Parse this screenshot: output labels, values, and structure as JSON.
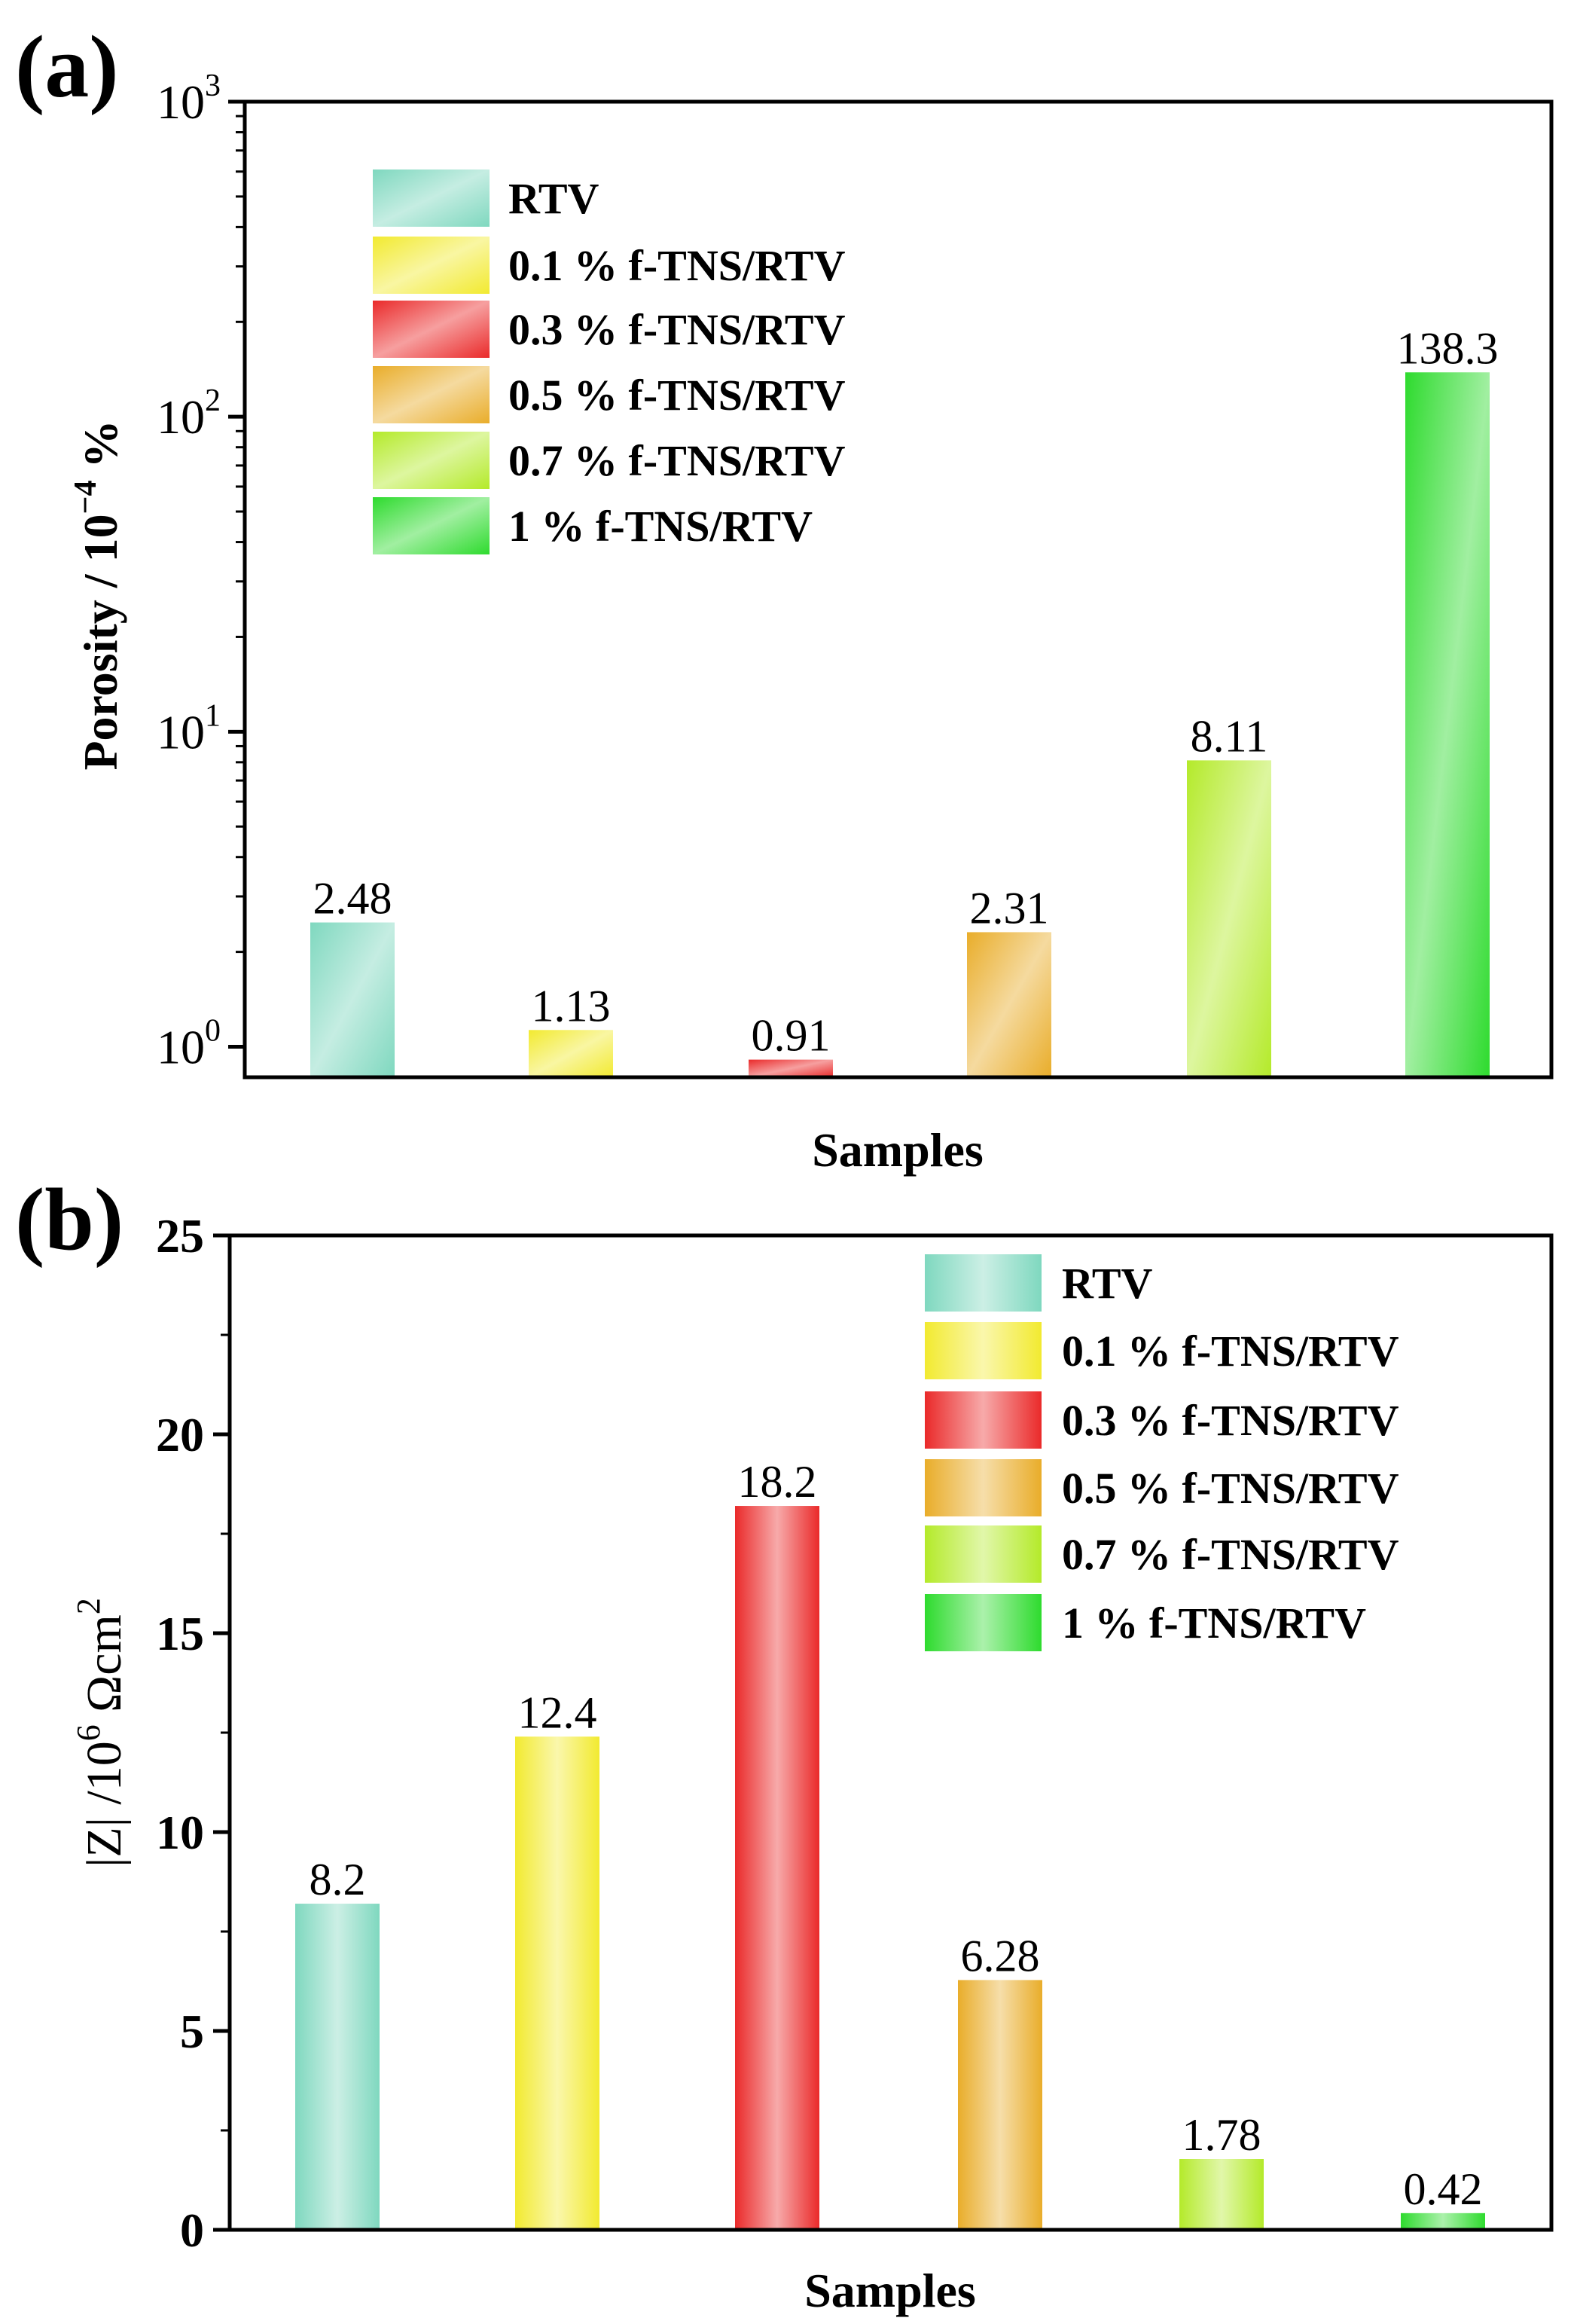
{
  "figure": {
    "panel_a_label": "(a)",
    "panel_b_label": "(b)"
  },
  "legend_entries": [
    {
      "label": "RTV",
      "color": "#7fd8bf"
    },
    {
      "label": "0.1 % f-TNS/RTV",
      "color": "#f2ea30"
    },
    {
      "label": "0.3 % f-TNS/RTV",
      "color": "#ea2a2a"
    },
    {
      "label": "0.5 % f-TNS/RTV",
      "color": "#e9ad2a"
    },
    {
      "label": "0.7 % f-TNS/RTV",
      "color": "#b4ea2a"
    },
    {
      "label": "1 % f-TNS/RTV",
      "color": "#2edb2e"
    }
  ],
  "chart_data": [
    {
      "type": "bar",
      "panel": "(a)",
      "yscale": "log",
      "ylabel_main": "Porosity / 10",
      "ylabel_exp": "−4",
      "ylabel_unit": " %",
      "xlabel": "Samples",
      "ylim": [
        0.8,
        1000
      ],
      "yticks": [
        {
          "base": "10",
          "exp": "0",
          "value": 1
        },
        {
          "base": "10",
          "exp": "1",
          "value": 10
        },
        {
          "base": "10",
          "exp": "2",
          "value": 100
        },
        {
          "base": "10",
          "exp": "3",
          "value": 1000
        }
      ],
      "categories": [
        "RTV",
        "0.1 % f-TNS/RTV",
        "0.3 % f-TNS/RTV",
        "0.5 % f-TNS/RTV",
        "0.7 % f-TNS/RTV",
        "1 % f-TNS/RTV"
      ],
      "values": [
        2.48,
        1.13,
        0.91,
        2.31,
        8.11,
        138.3
      ],
      "value_labels": [
        "2.48",
        "1.13",
        "0.91",
        "2.31",
        "8.11",
        "138.3"
      ],
      "legend_position": "top-left"
    },
    {
      "type": "bar",
      "panel": "(b)",
      "yscale": "linear",
      "ylabel_main": "|Z| /10",
      "ylabel_exp": "6",
      "ylabel_unit": " Ωcm",
      "ylabel_unit_exp": "2",
      "xlabel": "Samples",
      "ylim": [
        0,
        25
      ],
      "yticks": [
        {
          "label": "0",
          "value": 0
        },
        {
          "label": "5",
          "value": 5
        },
        {
          "label": "10",
          "value": 10
        },
        {
          "label": "15",
          "value": 15
        },
        {
          "label": "20",
          "value": 20
        },
        {
          "label": "25",
          "value": 25
        }
      ],
      "categories": [
        "RTV",
        "0.1 % f-TNS/RTV",
        "0.3 % f-TNS/RTV",
        "0.5 % f-TNS/RTV",
        "0.7 % f-TNS/RTV",
        "1 % f-TNS/RTV"
      ],
      "values": [
        8.2,
        12.4,
        18.2,
        6.28,
        1.78,
        0.42
      ],
      "value_labels": [
        "8.2",
        "12.4",
        "18.2",
        "6.28",
        "1.78",
        "0.42"
      ],
      "legend_position": "top-right"
    }
  ]
}
